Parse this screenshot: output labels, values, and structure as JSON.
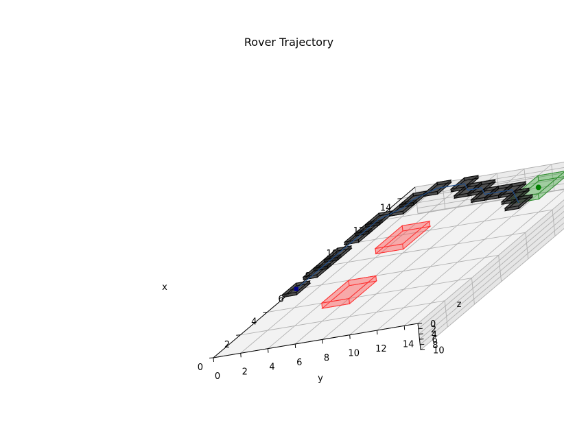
{
  "chart_data": {
    "type": "scatter",
    "projection": "3d",
    "title": "Rover Trajectory",
    "xlabel": "x",
    "ylabel": "y",
    "zlabel": "z",
    "xlim": [
      0,
      15
    ],
    "ylim": [
      0,
      15
    ],
    "zlim": [
      0,
      10
    ],
    "xticks": [
      "0",
      "2",
      "4",
      "6",
      "8",
      "10",
      "12",
      "14"
    ],
    "yticks": [
      "0",
      "2",
      "4",
      "6",
      "8",
      "10",
      "12",
      "14"
    ],
    "zticks": [
      "0",
      "2",
      "4",
      "6",
      "8",
      "10"
    ],
    "grid": true,
    "start": {
      "x": 8,
      "y": 0,
      "z": 0
    },
    "goal": {
      "x": 13,
      "y": 11,
      "z": 1
    },
    "path": [
      {
        "x": 8,
        "y": 0,
        "z": 0
      },
      {
        "x": 10,
        "y": 0,
        "z": 0
      },
      {
        "x": 11,
        "y": 0,
        "z": 0
      },
      {
        "x": 12,
        "y": 0,
        "z": 0
      },
      {
        "x": 14,
        "y": 0,
        "z": 0
      },
      {
        "x": 15,
        "y": 0,
        "z": 0
      },
      {
        "x": 16,
        "y": 0,
        "z": 0
      },
      {
        "x": 17,
        "y": 1,
        "z": 0
      },
      {
        "x": 18,
        "y": 1,
        "z": 0
      },
      {
        "x": 19,
        "y": 2,
        "z": 0
      },
      {
        "x": 19,
        "y": 4,
        "z": 0
      },
      {
        "x": 18,
        "y": 5,
        "z": 0
      },
      {
        "x": 18,
        "y": 6,
        "z": 0
      },
      {
        "x": 17,
        "y": 7,
        "z": 0
      },
      {
        "x": 17,
        "y": 8,
        "z": 0
      },
      {
        "x": 17,
        "y": 9,
        "z": 0
      },
      {
        "x": 16,
        "y": 10,
        "z": 0
      },
      {
        "x": 15,
        "y": 11,
        "z": 0
      }
    ],
    "obstacles": [
      {
        "x": 9,
        "y": 3,
        "z": 0,
        "size": 2
      },
      {
        "x": 4,
        "y": 4,
        "z": 0,
        "size": 2
      }
    ],
    "goal_region": {
      "x": 12,
      "y": 10,
      "z": 0,
      "size": 2
    },
    "colors": {
      "path": "#1f4e8c",
      "robot_box": "#2b2b2b",
      "obstacle": "#ff4d4d",
      "goal": "#2ca02c",
      "start": "#00008b",
      "pane": "#f2f2f2",
      "grid": "#b0b0b0"
    }
  }
}
